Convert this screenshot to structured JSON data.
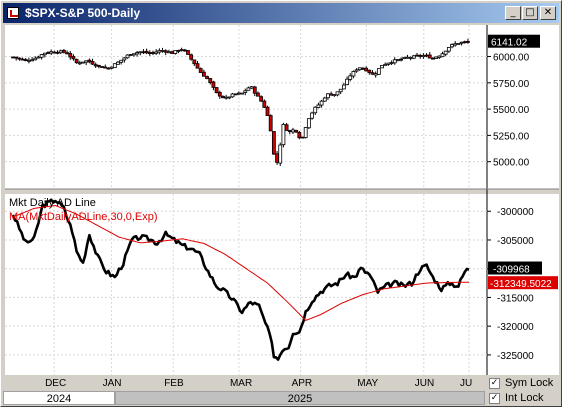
{
  "window": {
    "title": "$SPX-S&P 500-Daily",
    "buttons": {
      "minimize": "_",
      "maximize": "□",
      "close": "✕"
    }
  },
  "bottom": {
    "years": [
      "2024",
      "2025"
    ],
    "sym_lock": {
      "label": "Sym Lock",
      "checked": true
    },
    "int_lock": {
      "label": "Int Lock",
      "checked": true
    }
  },
  "colors": {
    "up": "#ffffff",
    "down": "#cc0000",
    "ma": "#dd0000",
    "line": "#000000"
  },
  "chart_data": [
    {
      "type": "candlestick",
      "title": "$SPX-S&P 500-Daily",
      "ylim": [
        4740,
        6300
      ],
      "yticks": [
        5000,
        5250,
        5500,
        5750,
        6000
      ],
      "ytick_labels": [
        "5000.00",
        "5250.00",
        "5500.00",
        "5750.00",
        "6000.00"
      ],
      "last_value": 6141.02,
      "last_label": "6141.02",
      "x_start": 0,
      "x_end": 215,
      "ohlc_anchors": [
        [
          0,
          5995
        ],
        [
          6,
          5965
        ],
        [
          10,
          5980
        ],
        [
          15,
          6035
        ],
        [
          20,
          6050
        ],
        [
          25,
          6040
        ],
        [
          30,
          5940
        ],
        [
          35,
          5960
        ],
        [
          40,
          5910
        ],
        [
          45,
          5890
        ],
        [
          50,
          5950
        ],
        [
          55,
          6025
        ],
        [
          60,
          6045
        ],
        [
          65,
          6030
        ],
        [
          70,
          6060
        ],
        [
          75,
          6035
        ],
        [
          80,
          6075
        ],
        [
          85,
          5950
        ],
        [
          88,
          5860
        ],
        [
          92,
          5780
        ],
        [
          96,
          5650
        ],
        [
          100,
          5600
        ],
        [
          104,
          5640
        ],
        [
          108,
          5650
        ],
        [
          112,
          5720
        ],
        [
          115,
          5630
        ],
        [
          118,
          5550
        ],
        [
          121,
          5380
        ],
        [
          123,
          5070
        ],
        [
          125,
          4970
        ],
        [
          127,
          5360
        ],
        [
          130,
          5280
        ],
        [
          133,
          5310
        ],
        [
          136,
          5200
        ],
        [
          139,
          5400
        ],
        [
          142,
          5500
        ],
        [
          145,
          5560
        ],
        [
          148,
          5640
        ],
        [
          152,
          5640
        ],
        [
          155,
          5700
        ],
        [
          159,
          5820
        ],
        [
          163,
          5900
        ],
        [
          167,
          5870
        ],
        [
          170,
          5820
        ],
        [
          174,
          5920
        ],
        [
          178,
          5950
        ],
        [
          182,
          5970
        ],
        [
          186,
          5990
        ],
        [
          190,
          6000
        ],
        [
          194,
          6010
        ],
        [
          198,
          5985
        ],
        [
          202,
          6020
        ],
        [
          206,
          6100
        ],
        [
          210,
          6130
        ],
        [
          215,
          6141
        ]
      ]
    },
    {
      "type": "line",
      "series": [
        {
          "name": "Mkt Daily AD Line",
          "values_anchor": [
            [
              0,
              -300500
            ],
            [
              6,
              -305500
            ],
            [
              10,
              -304800
            ],
            [
              14,
              -299000
            ],
            [
              20,
              -298000
            ],
            [
              24,
              -299500
            ],
            [
              28,
              -303500
            ],
            [
              30,
              -307000
            ],
            [
              33,
              -309000
            ],
            [
              36,
              -304000
            ],
            [
              40,
              -308000
            ],
            [
              44,
              -310500
            ],
            [
              48,
              -311500
            ],
            [
              52,
              -309000
            ],
            [
              56,
              -305000
            ],
            [
              60,
              -304500
            ],
            [
              64,
              -304800
            ],
            [
              68,
              -305500
            ],
            [
              72,
              -304000
            ],
            [
              76,
              -305000
            ],
            [
              80,
              -306000
            ],
            [
              84,
              -306500
            ],
            [
              88,
              -307500
            ],
            [
              92,
              -310500
            ],
            [
              96,
              -313000
            ],
            [
              100,
              -314000
            ],
            [
              104,
              -315500
            ],
            [
              108,
              -317500
            ],
            [
              112,
              -315800
            ],
            [
              116,
              -316500
            ],
            [
              118,
              -318500
            ],
            [
              121,
              -321500
            ],
            [
              123,
              -325000
            ],
            [
              125,
              -325700
            ],
            [
              127,
              -324000
            ],
            [
              130,
              -323500
            ],
            [
              132,
              -321000
            ],
            [
              135,
              -321000
            ],
            [
              138,
              -317500
            ],
            [
              141,
              -315500
            ],
            [
              145,
              -314000
            ],
            [
              149,
              -313000
            ],
            [
              153,
              -312500
            ],
            [
              157,
              -311000
            ],
            [
              161,
              -311500
            ],
            [
              164,
              -310000
            ],
            [
              168,
              -311000
            ],
            [
              172,
              -314000
            ],
            [
              176,
              -313000
            ],
            [
              180,
              -312500
            ],
            [
              184,
              -313000
            ],
            [
              188,
              -312500
            ],
            [
              192,
              -310000
            ],
            [
              195,
              -309500
            ],
            [
              198,
              -311500
            ],
            [
              202,
              -313500
            ],
            [
              206,
              -312500
            ],
            [
              210,
              -313000
            ],
            [
              213,
              -310500
            ],
            [
              215,
              -309968
            ]
          ]
        },
        {
          "name": "MA(MktDailyADLine,30,0,Exp)",
          "values_anchor": [
            [
              0,
              -301000
            ],
            [
              10,
              -299500
            ],
            [
              20,
              -299000
            ],
            [
              30,
              -300500
            ],
            [
              40,
              -302500
            ],
            [
              50,
              -304500
            ],
            [
              60,
              -305500
            ],
            [
              70,
              -305200
            ],
            [
              80,
              -304800
            ],
            [
              90,
              -305600
            ],
            [
              100,
              -307500
            ],
            [
              110,
              -310000
            ],
            [
              120,
              -312500
            ],
            [
              130,
              -316000
            ],
            [
              138,
              -319000
            ],
            [
              145,
              -318000
            ],
            [
              155,
              -316000
            ],
            [
              165,
              -314500
            ],
            [
              175,
              -313500
            ],
            [
              185,
              -313000
            ],
            [
              195,
              -312500
            ],
            [
              205,
              -312400
            ],
            [
              215,
              -312349.5
            ]
          ]
        }
      ],
      "ylim": [
        -328500,
        -297000
      ],
      "yticks": [
        -325000,
        -320000,
        -315000,
        -310000,
        -305000,
        -300000
      ],
      "ytick_labels": [
        "-325000",
        "-320000",
        "-315000",
        "-310000",
        "-305000",
        "-300000"
      ],
      "last_value_line": "-309968",
      "last_value_ma": "-312349.5022",
      "legend": [
        "Mkt Daily AD Line",
        "MA(MktDailyADLine,30,0,Exp)"
      ]
    }
  ],
  "x_axis": {
    "labels": [
      "DEC",
      "JAN",
      "FEB",
      "MAR",
      "APR",
      "MAY",
      "JUN",
      "JU"
    ],
    "positions": [
      20,
      48,
      78,
      110,
      140,
      172,
      200,
      222
    ]
  }
}
